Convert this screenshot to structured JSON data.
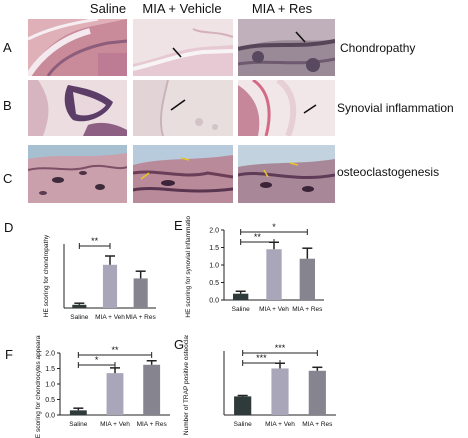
{
  "columns": [
    "Saline",
    "MIA + Vehicle",
    "MIA + Res"
  ],
  "rows": [
    {
      "letter": "A",
      "label": "Chondropathy"
    },
    {
      "letter": "B",
      "label": "Synovial inflammation"
    },
    {
      "letter": "C",
      "label": "osteoclastogenesis"
    }
  ],
  "colors": {
    "saline_bar": "#2f3a3a",
    "veh_bar": "#a8a6b8",
    "res_bar": "#86858f",
    "he_stain_pink": "#d9a9b3",
    "he_stain_purple": "#6e4b78"
  },
  "chart_data": [
    {
      "letter": "D",
      "type": "bar",
      "categories": [
        "Saline",
        "MIA + Veh",
        "MIA + Res"
      ],
      "values": [
        0.2,
        2.7,
        1.85
      ],
      "errors": [
        0.1,
        0.55,
        0.45
      ],
      "ylabel": "HE scoring for chondropathy",
      "ylim": [
        0,
        4
      ],
      "ticks": [],
      "significance": [
        {
          "from": 0,
          "to": 1,
          "label": "**"
        }
      ]
    },
    {
      "letter": "E",
      "type": "bar",
      "categories": [
        "Saline",
        "MIA + Veh",
        "MIA + Res"
      ],
      "values": [
        0.18,
        1.45,
        1.18
      ],
      "errors": [
        0.07,
        0.2,
        0.3
      ],
      "ylabel": "HE scoring for synovial inflammation",
      "ylim": [
        0,
        2.0
      ],
      "ticks": [
        "0.0",
        "0.5",
        "1.0",
        "1.5",
        "2.0"
      ],
      "significance": [
        {
          "from": 0,
          "to": 1,
          "label": "**"
        },
        {
          "from": 0,
          "to": 2,
          "label": "*"
        }
      ]
    },
    {
      "letter": "F",
      "type": "bar",
      "categories": [
        "Saline",
        "MIA + Veh",
        "MIA + Res"
      ],
      "values": [
        0.15,
        1.35,
        1.62
      ],
      "errors": [
        0.07,
        0.17,
        0.13
      ],
      "ylabel": "HE scoring for chondrocytes appearance",
      "ylim": [
        0,
        2.0
      ],
      "ticks": [
        "0.0",
        "0.5",
        "1.0",
        "1.5",
        "2.0"
      ],
      "significance": [
        {
          "from": 0,
          "to": 1,
          "label": "*"
        },
        {
          "from": 0,
          "to": 2,
          "label": "**"
        }
      ]
    },
    {
      "letter": "G",
      "type": "bar",
      "categories": [
        "Saline",
        "MIA + Veh",
        "MIA + Res"
      ],
      "values": [
        32,
        80,
        76
      ],
      "errors": [
        1.5,
        9,
        6
      ],
      "ylabel": "Number of TRAP positive osteoclast",
      "ylim": [
        0,
        110
      ],
      "ticks": [],
      "significance": [
        {
          "from": 0,
          "to": 1,
          "label": "***"
        },
        {
          "from": 0,
          "to": 2,
          "label": "***"
        }
      ]
    }
  ]
}
